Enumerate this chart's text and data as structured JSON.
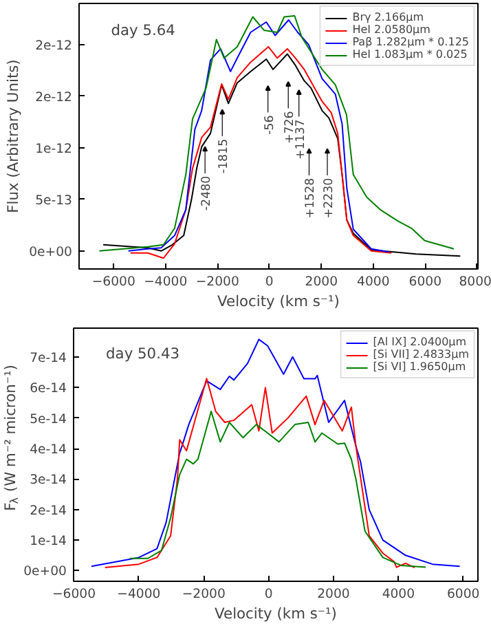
{
  "chart_data": [
    {
      "type": "line",
      "xlabel": "Velocity (km s⁻¹)",
      "ylabel": "Flux (Arbitrary Units)",
      "annotations": [
        "day 5.64",
        {
          "text": "-2480",
          "x": -2480,
          "y": 1.01e-12
        },
        {
          "text": "-1815",
          "x": -1815,
          "y": 1.37e-12
        },
        {
          "text": "-56",
          "x": -56,
          "y": 1.6e-12
        },
        {
          "text": "+726",
          "x": 726,
          "y": 1.64e-12
        },
        {
          "text": "+1137",
          "x": 1137,
          "y": 1.56e-12
        },
        {
          "text": "+1528",
          "x": 1528,
          "y": 9.9e-13
        },
        {
          "text": "+2230",
          "x": 2230,
          "y": 9.9e-13
        }
      ],
      "xlim": [
        -7330,
        8030
      ],
      "ylim": [
        -1.75e-13,
        2.4e-12
      ],
      "xticks": [
        -6000,
        -4000,
        -2000,
        0,
        2000,
        4000,
        6000,
        8000
      ],
      "yticks": [
        {
          "value": 0,
          "label": "0e+00"
        },
        {
          "value": 5e-13,
          "label": "5e-13"
        },
        {
          "value": 1e-12,
          "label": "1e-12"
        },
        {
          "value": 1.5e-12,
          "label": "2e-12"
        },
        {
          "value": 2e-12,
          "label": "2e-12"
        }
      ],
      "legend": "top right",
      "grid": false,
      "line_style": "solid",
      "marker": "none",
      "series": [
        {
          "name": "Brγ 2.166μm",
          "color": "#000000",
          "x": [
            -6400,
            -4680,
            -4170,
            -3740,
            -3300,
            -3000,
            -2800,
            -2610,
            -2270,
            -1840,
            -1580,
            -1240,
            -725,
            -120,
            140,
            690,
            1000,
            1340,
            1600,
            2030,
            2290,
            2630,
            2800,
            2980,
            3230,
            3920,
            4780,
            5640,
            7350
          ],
          "values": [
            6e-14,
            3e-14,
            0.0,
            6e-14,
            1.5e-13,
            5e-13,
            8e-13,
            1.01e-12,
            1.14e-12,
            1.61e-12,
            1.43e-12,
            1.63e-12,
            1.74e-12,
            1.86e-12,
            1.76e-12,
            1.91e-12,
            1.8e-12,
            1.65e-12,
            1.58e-12,
            1.36e-12,
            1.29e-12,
            1.09e-12,
            7.4e-13,
            3e-13,
            1.7e-13,
            1e-14,
            -1e-14,
            -3e-14,
            -5e-14
          ]
        },
        {
          "name": "HeI 2.0580μm",
          "color": "#ff0000",
          "x": [
            -5350,
            -4680,
            -4080,
            -3650,
            -3220,
            -2960,
            -2610,
            -2270,
            -1840,
            -1580,
            -1240,
            -725,
            -40,
            300,
            690,
            1000,
            1340,
            2030,
            2380,
            2630,
            2800,
            2980,
            3230,
            3920,
            4700
          ],
          "values": [
            -2e-14,
            -2e-14,
            -7e-14,
            7e-14,
            4e-13,
            8e-13,
            1.1e-12,
            1.2e-12,
            1.62e-12,
            1.47e-12,
            1.68e-12,
            1.83e-12,
            1.98e-12,
            1.87e-12,
            1.96e-12,
            1.87e-12,
            1.76e-12,
            1.45e-12,
            1.34e-12,
            1.14e-12,
            7.4e-13,
            3e-13,
            1.5e-13,
            0.0,
            -2e-14
          ]
        },
        {
          "name": "Paβ 1.282μm * 0.125",
          "color": "#0000ff",
          "x": [
            -5430,
            -4680,
            -4170,
            -3650,
            -3220,
            -2870,
            -2610,
            -2270,
            -1880,
            -1500,
            -1240,
            -725,
            -120,
            220,
            740,
            1090,
            1510,
            2030,
            2540,
            2800,
            2980,
            3230,
            3920,
            4600
          ],
          "values": [
            0.0,
            2e-14,
            3e-14,
            1.5e-13,
            4e-13,
            1.18e-12,
            1.36e-12,
            1.85e-12,
            1.96e-12,
            1.74e-12,
            1.87e-12,
            2.12e-12,
            2.22e-12,
            2.09e-12,
            2.24e-12,
            2.12e-12,
            2e-12,
            1.67e-12,
            1.52e-12,
            1.23e-12,
            6.1e-13,
            2.1e-13,
            2e-14,
            -1e-14
          ]
        },
        {
          "name": "HeI 1.083μm * 0.025",
          "color": "#008000",
          "x": [
            -6550,
            -4680,
            -4080,
            -3650,
            -3220,
            -2960,
            -2440,
            -2040,
            -1750,
            -1240,
            -640,
            -210,
            300,
            570,
            970,
            1250,
            2030,
            2540,
            2970,
            3230,
            3750,
            4270,
            4950,
            5470,
            5980,
            7100
          ],
          "values": [
            0.0,
            4e-14,
            6e-14,
            2.2e-13,
            7.4e-13,
            1.28e-12,
            1.58e-12,
            2.05e-12,
            1.87e-12,
            1.98e-12,
            2.27e-12,
            2.14e-12,
            2.12e-12,
            2.27e-12,
            2.28e-12,
            2.07e-12,
            1.76e-12,
            1.61e-12,
            1.32e-12,
            7.4e-13,
            5.2e-13,
            4e-13,
            2.9e-13,
            2.2e-13,
            1e-13,
            2e-14
          ]
        }
      ]
    },
    {
      "type": "line",
      "xlabel": "Velocity (km s⁻¹)",
      "ylabel": "F$_{λ}$ (W m⁻² micron⁻¹)",
      "annotations": [
        "day 50.43"
      ],
      "xlim": [
        -6010,
        6450
      ],
      "ylim": [
        -3.5e-15,
        7.95e-14
      ],
      "xticks": [
        -6000,
        -4000,
        -2000,
        0,
        2000,
        4000,
        6000
      ],
      "yticks": [
        {
          "value": 0,
          "label": "0e+00"
        },
        {
          "value": 1e-14,
          "label": "1e-14"
        },
        {
          "value": 2e-14,
          "label": "2e-14"
        },
        {
          "value": 3e-14,
          "label": "3e-14"
        },
        {
          "value": 4e-14,
          "label": "4e-14"
        },
        {
          "value": 5e-14,
          "label": "5e-14"
        },
        {
          "value": 6e-14,
          "label": "6e-14"
        },
        {
          "value": 7e-14,
          "label": "7e-14"
        }
      ],
      "legend": "top right",
      "grid": false,
      "line_style": "solid",
      "marker": "none",
      "series": [
        {
          "name": "[Al IX] 2.0400μm",
          "color": "#0000ff",
          "x": [
            -5460,
            -4000,
            -3440,
            -3160,
            -2740,
            -2670,
            -2460,
            -1910,
            -1490,
            -1210,
            -1070,
            -650,
            -300,
            -30,
            460,
            740,
            1090,
            1430,
            1500,
            1850,
            2340,
            2690,
            2830,
            3100,
            3520,
            4220,
            5050,
            5890
          ],
          "values": [
            1.4e-15,
            4.3e-15,
            7.2e-15,
            1.57e-14,
            3.86e-14,
            4.08e-14,
            4.79e-14,
            6.22e-14,
            5.94e-14,
            6.37e-14,
            6.25e-14,
            6.79e-14,
            7.58e-14,
            7.37e-14,
            6.44e-14,
            7.01e-14,
            6.29e-14,
            6.29e-14,
            6.4e-14,
            4.86e-14,
            5.58e-14,
            4.08e-14,
            3.58e-14,
            2e-14,
            1e-14,
            5e-15,
            2.1e-15,
            1.4e-15
          ]
        },
        {
          "name": "[Si VII] 2.4833μm",
          "color": "#ff0000",
          "x": [
            -5040,
            -4000,
            -3440,
            -3020,
            -2810,
            -2740,
            -2530,
            -1910,
            -1630,
            -1350,
            -1070,
            -520,
            -300,
            -100,
            110,
            600,
            1160,
            1430,
            1710,
            2270,
            2550,
            2690,
            3100,
            3520,
            3870,
            3940,
            4220,
            4500
          ],
          "values": [
            1e-15,
            2.1e-15,
            4.3e-15,
            1.14e-14,
            3e-14,
            4.29e-14,
            3.93e-14,
            6.3e-14,
            5.22e-14,
            4.86e-14,
            4.93e-14,
            5.44e-14,
            4.58e-14,
            6e-14,
            4.51e-14,
            5.01e-14,
            5.72e-14,
            4.79e-14,
            5.58e-14,
            4.58e-14,
            5.36e-14,
            4.08e-14,
            1.14e-14,
            5.7e-15,
            2.9e-15,
            1.1e-15,
            2.4e-15,
            1e-15
          ]
        },
        {
          "name": "[Si VI] 1.9650μm",
          "color": "#008000",
          "x": [
            -4270,
            -3720,
            -3300,
            -3020,
            -2740,
            -2530,
            -2320,
            -2180,
            -1770,
            -1490,
            -1210,
            -790,
            -380,
            -30,
            320,
            810,
            1220,
            1430,
            1640,
            2130,
            2340,
            2550,
            2690,
            2970,
            3520,
            4080,
            4840
          ],
          "values": [
            4e-15,
            4e-15,
            6.6e-15,
            1.73e-14,
            3.15e-14,
            3.65e-14,
            3.5e-14,
            3.65e-14,
            5.22e-14,
            4.22e-14,
            4.86e-14,
            4.36e-14,
            4.79e-14,
            4.51e-14,
            4.22e-14,
            4.79e-14,
            4.86e-14,
            4.22e-14,
            4.51e-14,
            4.15e-14,
            4.18e-14,
            3.65e-14,
            3e-14,
            1.29e-14,
            4.3e-15,
            1.7e-15,
            1.1e-15
          ]
        }
      ]
    }
  ]
}
